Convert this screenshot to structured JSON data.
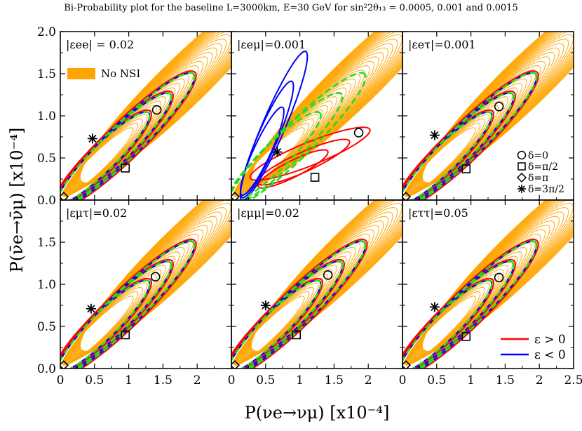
{
  "chart_data": {
    "type": "line",
    "title": "Bi-Probability plot for  the baseline L=3000km, E=30 GeV for sin²2θ₁₃ = 0.0005, 0.001 and 0.0015",
    "xlabel": "P(νe→νμ) [x10⁻⁴]",
    "ylabel": "P(ν̄e→ν̄μ) [x10⁻⁴]",
    "xlim": [
      0,
      2.5
    ],
    "ylim": [
      0,
      2.0
    ],
    "xticks_left": [
      "0",
      "0.5",
      "1",
      "1.5",
      "2"
    ],
    "xticks_mid": [
      "0",
      "0.5",
      "1",
      "1.5",
      "2"
    ],
    "xticks_right": [
      "0",
      "0.5",
      "1",
      "1.5",
      "2",
      "2.5"
    ],
    "yticks": [
      "0.0",
      "0.5",
      "1.0",
      "1.5",
      "2.0"
    ],
    "panels": [
      {
        "label": "|εee| = 0.02",
        "marker_circle": [
          1.41,
          1.07
        ],
        "marker_square": [
          0.95,
          0.38
        ],
        "marker_star": [
          0.47,
          0.73
        ],
        "marker_diamond": [
          0.05,
          0.04
        ]
      },
      {
        "label": "|εeμ|=0.001",
        "marker_circle": [
          1.86,
          0.8
        ],
        "marker_square": [
          1.22,
          0.27
        ],
        "marker_star": [
          0.67,
          0.57
        ],
        "marker_diamond": [
          0.05,
          0.04
        ]
      },
      {
        "label": "|εeτ|=0.001",
        "marker_circle": [
          1.41,
          1.11
        ],
        "marker_square": [
          0.93,
          0.37
        ],
        "marker_star": [
          0.47,
          0.77
        ],
        "marker_diamond": [
          0.05,
          0.04
        ]
      },
      {
        "label": "|εμτ|=0.02",
        "marker_circle": [
          1.39,
          1.09
        ],
        "marker_square": [
          0.95,
          0.4
        ],
        "marker_star": [
          0.45,
          0.71
        ],
        "marker_diamond": [
          0.05,
          0.04
        ]
      },
      {
        "label": "|εμμ|=0.02",
        "marker_circle": [
          1.41,
          1.11
        ],
        "marker_square": [
          0.95,
          0.4
        ],
        "marker_star": [
          0.5,
          0.75
        ],
        "marker_diamond": [
          0.05,
          0.04
        ]
      },
      {
        "label": "|εττ|=0.05",
        "marker_circle": [
          1.41,
          1.08
        ],
        "marker_square": [
          0.93,
          0.38
        ],
        "marker_star": [
          0.47,
          0.73
        ],
        "marker_diamond": [
          0.05,
          0.04
        ]
      }
    ],
    "series": [
      {
        "name": "No NSI",
        "color": "#FFA500",
        "style": "filled contours"
      },
      {
        "name": "ε > 0",
        "color": "#FF0000"
      },
      {
        "name": "ε < 0",
        "color": "#0000FF"
      },
      {
        "name": "standard (dashed)",
        "color": "#22DD22"
      }
    ],
    "legend_no_nsi": "No NSI",
    "legend_delta": [
      "δ=0",
      "δ=π/2",
      "δ=π",
      "δ=3π/2"
    ],
    "legend_eps": [
      "ε > 0",
      "ε < 0"
    ]
  }
}
